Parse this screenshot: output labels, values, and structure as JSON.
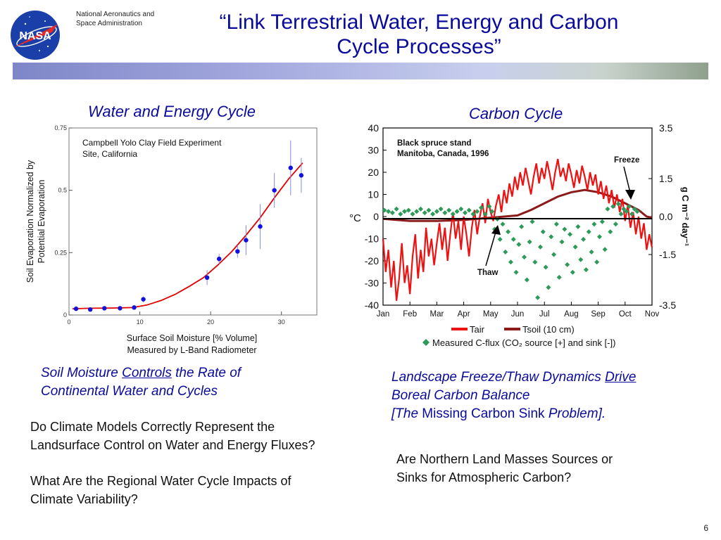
{
  "header": {
    "agency_line1": "National Aeronautics and",
    "agency_line2": "Space Administration",
    "logo_text": "NASA",
    "title_line1": "“Link Terrestrial Water, Energy and Carbon",
    "title_line2": "Cycle Processes”"
  },
  "left": {
    "heading": "Water and Energy Cycle",
    "finding_part1": "Soil Moisture ",
    "finding_underlined": "Controls",
    "finding_part2": " the Rate of",
    "finding_line2": "Continental Water and Cycles",
    "question1_line1": "Do Climate Models Correctly Represent the",
    "question1_line2": "Landsurface Control on Water and Energy Fluxes?",
    "question2_line1": "What Are the Regional Water Cycle Impacts of",
    "question2_line2": "Climate Variability?"
  },
  "right": {
    "heading": "Carbon Cycle",
    "finding_line1_part1": "Landscape Freeze/Thaw Dynamics ",
    "finding_line1_underlined": "Drive",
    "finding_line2": "Boreal Carbon Balance",
    "finding_line3_a": "[The",
    "finding_line3_b": " Missing Carbon Sink ",
    "finding_line3_c": "Problem].",
    "question_line1": "Are Northern Land Masses Sources or",
    "question_line2": "Sinks for Atmospheric Carbon?"
  },
  "page_number": "6",
  "colors": {
    "title_blue": "#0a0a9a",
    "fit_red": "#e00000",
    "point_blue": "#1010e0",
    "tair_red": "#ee1111",
    "tsoil_darkred": "#8b1a1a",
    "flux_green": "#2e9a5a"
  },
  "chart_data": [
    {
      "type": "scatter",
      "annotation_line1": "Campbell Yolo Clay Field Experiment",
      "annotation_line2": "Site, California",
      "ylabel_line1": "Soil Evaporation Normalized by",
      "ylabel_line2": "Potential Evaporation",
      "xlabel_line1": "Surface Soil Moisture [% Volume]",
      "xlabel_line2": "Measured by L-Band Radiometer",
      "xlim": [
        0,
        35
      ],
      "ylim": [
        0,
        0.75
      ],
      "x_ticks": [
        0,
        10,
        20,
        30
      ],
      "x_tick_labels": [
        "0",
        "10",
        "20",
        "30"
      ],
      "y_ticks": [
        0,
        0.25,
        0.5,
        0.75
      ],
      "y_tick_labels": [
        "0",
        "0.25",
        "0.5",
        "0.75"
      ],
      "points": [
        {
          "x": 1.0,
          "y": 0.025,
          "err": 0.005
        },
        {
          "x": 3.0,
          "y": 0.022,
          "err": 0.005
        },
        {
          "x": 5.0,
          "y": 0.027,
          "err": 0.005
        },
        {
          "x": 7.2,
          "y": 0.027,
          "err": 0.006
        },
        {
          "x": 9.2,
          "y": 0.03,
          "err": 0.006
        },
        {
          "x": 10.5,
          "y": 0.063,
          "err": 0.012
        },
        {
          "x": 19.5,
          "y": 0.15,
          "err": 0.03
        },
        {
          "x": 21.2,
          "y": 0.225,
          "err": 0.02
        },
        {
          "x": 23.8,
          "y": 0.255,
          "err": 0.025
        },
        {
          "x": 25.0,
          "y": 0.3,
          "err": 0.06
        },
        {
          "x": 27.0,
          "y": 0.355,
          "err": 0.09
        },
        {
          "x": 29.0,
          "y": 0.5,
          "err": 0.07
        },
        {
          "x": 31.3,
          "y": 0.59,
          "err": 0.11
        },
        {
          "x": 32.8,
          "y": 0.56,
          "err": 0.07
        }
      ],
      "fit_curve": [
        [
          0.5,
          0.025
        ],
        [
          3,
          0.027
        ],
        [
          6,
          0.028
        ],
        [
          9,
          0.03
        ],
        [
          11,
          0.04
        ],
        [
          13,
          0.058
        ],
        [
          15,
          0.083
        ],
        [
          17,
          0.115
        ],
        [
          19,
          0.15
        ],
        [
          21,
          0.2
        ],
        [
          23,
          0.255
        ],
        [
          25,
          0.32
        ],
        [
          27,
          0.39
        ],
        [
          29,
          0.47
        ],
        [
          31,
          0.545
        ],
        [
          33,
          0.61
        ]
      ]
    },
    {
      "type": "line",
      "annotation_line1": "Black spruce stand",
      "annotation_line2": "Manitoba, Canada, 1996",
      "freeze_label": "Freeze",
      "thaw_label": "Thaw",
      "left_axis_label": "°C",
      "right_axis_label": "g C m⁻² day⁻¹",
      "months": [
        "Jan",
        "Feb",
        "Mar",
        "Apr",
        "May",
        "Jun",
        "Jul",
        "Aug",
        "Sep",
        "Oct",
        "Nov"
      ],
      "y_left_ticks": [
        40,
        30,
        20,
        10,
        0,
        -10,
        -20,
        -30,
        -40
      ],
      "y_left_tick_labels": [
        "40",
        "30",
        "20",
        "10",
        "0",
        "-10",
        "-20",
        "-30",
        "-40"
      ],
      "y_left_range": [
        -40,
        40
      ],
      "y_right_ticks": [
        3.5,
        1.5,
        0.0,
        -1.5,
        -3.5
      ],
      "y_right_tick_labels": [
        "3.5",
        "1.5",
        "0.0",
        "-1.5",
        "-3.5"
      ],
      "legend": {
        "tair": "Tair",
        "tsoil": "Tsoil (10 cm)",
        "flux": "Measured C-flux (CO₂ source [+] and sink [-])"
      },
      "tair_series": [
        [
          0,
          -10
        ],
        [
          0.1,
          -25
        ],
        [
          0.2,
          -15
        ],
        [
          0.3,
          -32
        ],
        [
          0.4,
          -20
        ],
        [
          0.5,
          -38
        ],
        [
          0.6,
          -28
        ],
        [
          0.7,
          -12
        ],
        [
          0.8,
          -30
        ],
        [
          0.9,
          -22
        ],
        [
          1.0,
          -35
        ],
        [
          1.1,
          -18
        ],
        [
          1.2,
          -8
        ],
        [
          1.3,
          -28
        ],
        [
          1.4,
          -15
        ],
        [
          1.5,
          -25
        ],
        [
          1.6,
          -5
        ],
        [
          1.7,
          -18
        ],
        [
          1.8,
          -10
        ],
        [
          1.9,
          -22
        ],
        [
          2.0,
          -12
        ],
        [
          2.1,
          -3
        ],
        [
          2.2,
          -15
        ],
        [
          2.3,
          -5
        ],
        [
          2.4,
          -20
        ],
        [
          2.5,
          -8
        ],
        [
          2.6,
          2
        ],
        [
          2.7,
          -10
        ],
        [
          2.8,
          -2
        ],
        [
          2.9,
          -15
        ],
        [
          3.0,
          0
        ],
        [
          3.1,
          -8
        ],
        [
          3.2,
          -18
        ],
        [
          3.3,
          -5
        ],
        [
          3.4,
          3
        ],
        [
          3.5,
          -8
        ],
        [
          3.6,
          0
        ],
        [
          3.7,
          6
        ],
        [
          3.8,
          -3
        ],
        [
          3.9,
          8
        ],
        [
          4.0,
          2
        ],
        [
          4.1,
          -2
        ],
        [
          4.2,
          5
        ],
        [
          4.3,
          10
        ],
        [
          4.4,
          2
        ],
        [
          4.5,
          12
        ],
        [
          4.6,
          6
        ],
        [
          4.7,
          15
        ],
        [
          4.8,
          9
        ],
        [
          4.9,
          18
        ],
        [
          5.0,
          12
        ],
        [
          5.1,
          20
        ],
        [
          5.2,
          14
        ],
        [
          5.3,
          22
        ],
        [
          5.4,
          16
        ],
        [
          5.5,
          10
        ],
        [
          5.6,
          18
        ],
        [
          5.7,
          24
        ],
        [
          5.8,
          15
        ],
        [
          5.9,
          22
        ],
        [
          6.0,
          17
        ],
        [
          6.1,
          25
        ],
        [
          6.2,
          19
        ],
        [
          6.3,
          12
        ],
        [
          6.4,
          20
        ],
        [
          6.5,
          26
        ],
        [
          6.6,
          18
        ],
        [
          6.7,
          22
        ],
        [
          6.8,
          16
        ],
        [
          6.9,
          24
        ],
        [
          7.0,
          19
        ],
        [
          7.1,
          13
        ],
        [
          7.2,
          21
        ],
        [
          7.3,
          15
        ],
        [
          7.4,
          23
        ],
        [
          7.5,
          18
        ],
        [
          7.6,
          12
        ],
        [
          7.7,
          20
        ],
        [
          7.8,
          14
        ],
        [
          7.9,
          19
        ],
        [
          8.0,
          10
        ],
        [
          8.1,
          16
        ],
        [
          8.2,
          8
        ],
        [
          8.3,
          14
        ],
        [
          8.4,
          6
        ],
        [
          8.5,
          12
        ],
        [
          8.6,
          4
        ],
        [
          8.7,
          10
        ],
        [
          8.8,
          2
        ],
        [
          8.9,
          8
        ],
        [
          9.0,
          -2
        ],
        [
          9.1,
          5
        ],
        [
          9.2,
          -5
        ],
        [
          9.3,
          2
        ],
        [
          9.4,
          -8
        ],
        [
          9.5,
          0
        ],
        [
          9.6,
          -10
        ],
        [
          9.7,
          -3
        ],
        [
          9.8,
          -15
        ],
        [
          9.9,
          -8
        ],
        [
          10.0,
          -14
        ]
      ],
      "tsoil_series": [
        [
          0,
          -1
        ],
        [
          1,
          -2
        ],
        [
          2,
          -2
        ],
        [
          3,
          -1.5
        ],
        [
          3.5,
          -1
        ],
        [
          4,
          -0.5
        ],
        [
          4.5,
          0
        ],
        [
          5,
          0.5
        ],
        [
          5.5,
          3
        ],
        [
          6,
          6
        ],
        [
          6.5,
          9
        ],
        [
          7,
          11
        ],
        [
          7.5,
          12
        ],
        [
          8,
          11
        ],
        [
          8.5,
          9
        ],
        [
          9,
          6
        ],
        [
          9.5,
          3
        ],
        [
          9.8,
          0
        ],
        [
          10,
          -0.5
        ]
      ],
      "flux_points": [
        [
          0.05,
          0.25
        ],
        [
          0.2,
          0.2
        ],
        [
          0.35,
          0.15
        ],
        [
          0.5,
          0.3
        ],
        [
          0.65,
          0.1
        ],
        [
          0.8,
          0.2
        ],
        [
          0.95,
          0.25
        ],
        [
          1.1,
          0.1
        ],
        [
          1.25,
          0.2
        ],
        [
          1.4,
          0.3
        ],
        [
          1.55,
          0.15
        ],
        [
          1.7,
          0.25
        ],
        [
          1.85,
          0.1
        ],
        [
          2.0,
          0.2
        ],
        [
          2.15,
          0.3
        ],
        [
          2.3,
          0.15
        ],
        [
          2.45,
          0.25
        ],
        [
          2.6,
          0.1
        ],
        [
          2.75,
          0.2
        ],
        [
          2.9,
          0.3
        ],
        [
          3.05,
          0.15
        ],
        [
          3.2,
          0.25
        ],
        [
          3.35,
          0.1
        ],
        [
          3.5,
          0.2
        ],
        [
          3.65,
          0.35
        ],
        [
          3.8,
          0.1
        ],
        [
          3.95,
          0.4
        ],
        [
          4.05,
          0.2
        ],
        [
          4.15,
          -0.5
        ],
        [
          4.25,
          -0.1
        ],
        [
          4.35,
          -0.9
        ],
        [
          4.45,
          -0.3
        ],
        [
          4.55,
          -1.4
        ],
        [
          4.65,
          -0.6
        ],
        [
          4.75,
          -1.8
        ],
        [
          4.85,
          -0.9
        ],
        [
          4.95,
          -2.2
        ],
        [
          5.05,
          -1.1
        ],
        [
          5.15,
          -0.4
        ],
        [
          5.25,
          -1.6
        ],
        [
          5.35,
          -2.5
        ],
        [
          5.45,
          -1.0
        ],
        [
          5.55,
          -0.2
        ],
        [
          5.65,
          -1.8
        ],
        [
          5.75,
          -3.2
        ],
        [
          5.85,
          -1.2
        ],
        [
          5.95,
          -0.6
        ],
        [
          6.05,
          -2.0
        ],
        [
          6.15,
          -2.8
        ],
        [
          6.25,
          -0.8
        ],
        [
          6.35,
          -1.5
        ],
        [
          6.45,
          -0.3
        ],
        [
          6.55,
          -2.4
        ],
        [
          6.65,
          -1.0
        ],
        [
          6.75,
          -0.5
        ],
        [
          6.85,
          -1.9
        ],
        [
          6.95,
          -0.7
        ],
        [
          7.05,
          -2.2
        ],
        [
          7.15,
          -1.2
        ],
        [
          7.25,
          -0.4
        ],
        [
          7.35,
          -1.7
        ],
        [
          7.45,
          -0.9
        ],
        [
          7.55,
          -2.1
        ],
        [
          7.65,
          -0.6
        ],
        [
          7.75,
          -1.4
        ],
        [
          7.85,
          -0.3
        ],
        [
          7.95,
          -1.8
        ],
        [
          8.05,
          -0.8
        ],
        [
          8.15,
          -0.2
        ],
        [
          8.25,
          -1.3
        ],
        [
          8.35,
          0.3
        ],
        [
          8.45,
          -0.6
        ],
        [
          8.55,
          0.4
        ],
        [
          8.65,
          -0.3
        ],
        [
          8.75,
          0.5
        ],
        [
          8.85,
          0.1
        ],
        [
          8.95,
          0.3
        ],
        [
          9.05,
          0.2
        ],
        [
          9.15,
          0.4
        ],
        [
          9.25,
          0.1
        ],
        [
          9.35,
          0.3
        ],
        [
          9.45,
          0.2
        ]
      ]
    }
  ]
}
